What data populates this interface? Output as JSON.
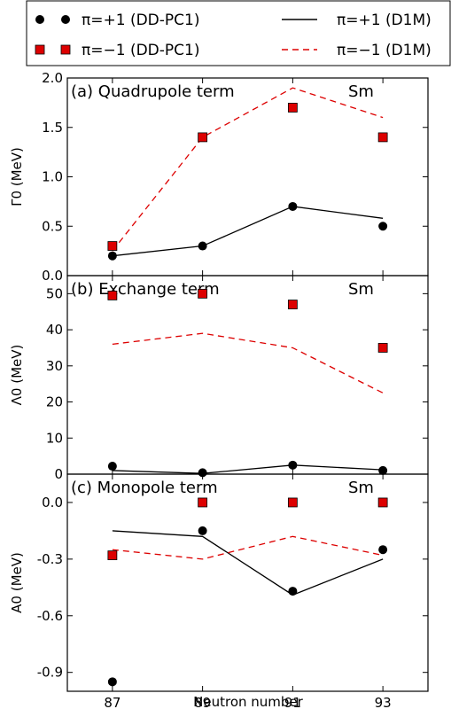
{
  "legend": {
    "entries": [
      {
        "label": "π=+1 (DD-PC1)",
        "symbol": "black-circle"
      },
      {
        "label": "π=−1 (DD-PC1)",
        "symbol": "red-square"
      },
      {
        "label": "π=+1 (D1M)",
        "symbol": "black-solid-line"
      },
      {
        "label": "π=−1 (D1M)",
        "symbol": "red-dashed-line"
      }
    ]
  },
  "chart_data": [
    {
      "type": "scatter",
      "panel_label": "(a) Quadrupole term",
      "element": "Sm",
      "ylabel": "Γ0 (MeV)",
      "x": [
        87,
        89,
        91,
        93
      ],
      "xlim": [
        86,
        94
      ],
      "ylim": [
        0,
        2.0
      ],
      "yticks": [
        0.0,
        0.5,
        1.0,
        1.5,
        2.0
      ],
      "ytick_labels": [
        "0.0",
        "0.5",
        "1.0",
        "1.5",
        "2.0"
      ],
      "series": [
        {
          "name": "π=+1 (DD-PC1)",
          "kind": "marker-circle",
          "color": "#000000",
          "values": [
            0.2,
            0.3,
            0.7,
            0.5
          ]
        },
        {
          "name": "π=−1 (DD-PC1)",
          "kind": "marker-square",
          "color": "#dd0000",
          "values": [
            0.3,
            1.4,
            1.7,
            1.4
          ]
        },
        {
          "name": "π=+1 (D1M)",
          "kind": "line-solid",
          "color": "#000000",
          "values": [
            0.2,
            0.3,
            0.7,
            0.58
          ]
        },
        {
          "name": "π=−1 (D1M)",
          "kind": "line-dashed",
          "color": "#dd0000",
          "values": [
            0.25,
            1.4,
            1.9,
            1.6
          ]
        }
      ]
    },
    {
      "type": "scatter",
      "panel_label": "(b) Exchange term",
      "element": "Sm",
      "ylabel": "Λ0 (MeV)",
      "x": [
        87,
        89,
        91,
        93
      ],
      "xlim": [
        86,
        94
      ],
      "ylim": [
        0,
        55
      ],
      "yticks": [
        0,
        10,
        20,
        30,
        40,
        50
      ],
      "ytick_labels": [
        "0",
        "10",
        "20",
        "30",
        "40",
        "50"
      ],
      "series": [
        {
          "name": "π=+1 (DD-PC1)",
          "kind": "marker-circle",
          "color": "#000000",
          "values": [
            2.2,
            0.4,
            2.5,
            1.0
          ]
        },
        {
          "name": "π=−1 (DD-PC1)",
          "kind": "marker-square",
          "color": "#dd0000",
          "values": [
            49.5,
            50.0,
            47.0,
            35.0
          ]
        },
        {
          "name": "π=+1 (D1M)",
          "kind": "line-solid",
          "color": "#000000",
          "values": [
            1.0,
            0.2,
            2.5,
            1.2
          ]
        },
        {
          "name": "π=−1 (D1M)",
          "kind": "line-dashed",
          "color": "#dd0000",
          "values": [
            36.0,
            39.0,
            35.0,
            22.5
          ]
        }
      ]
    },
    {
      "type": "scatter",
      "panel_label": "(c) Monopole term",
      "element": "Sm",
      "ylabel": "A0 (MeV)",
      "xlabel": "Neutron number",
      "x": [
        87,
        89,
        91,
        93
      ],
      "xlim": [
        86,
        94
      ],
      "ylim": [
        -1.0,
        0.15
      ],
      "yticks": [
        -0.9,
        -0.6,
        -0.3,
        0.0
      ],
      "ytick_labels": [
        "-0.9",
        "-0.6",
        "-0.3",
        "0.0"
      ],
      "xticks": [
        87,
        89,
        91,
        93
      ],
      "xtick_labels": [
        "87",
        "89",
        "91",
        "93"
      ],
      "series": [
        {
          "name": "π=+1 (DD-PC1)",
          "kind": "marker-circle",
          "color": "#000000",
          "values": [
            -0.95,
            -0.15,
            -0.47,
            -0.25
          ]
        },
        {
          "name": "π=−1 (DD-PC1)",
          "kind": "marker-square",
          "color": "#dd0000",
          "values": [
            -0.28,
            0.0,
            0.0,
            0.0
          ]
        },
        {
          "name": "π=+1 (D1M)",
          "kind": "line-solid",
          "color": "#000000",
          "values": [
            -0.15,
            -0.18,
            -0.49,
            -0.3
          ]
        },
        {
          "name": "π=−1 (D1M)",
          "kind": "line-dashed",
          "color": "#dd0000",
          "values": [
            -0.25,
            -0.3,
            -0.18,
            -0.28
          ]
        }
      ]
    }
  ]
}
